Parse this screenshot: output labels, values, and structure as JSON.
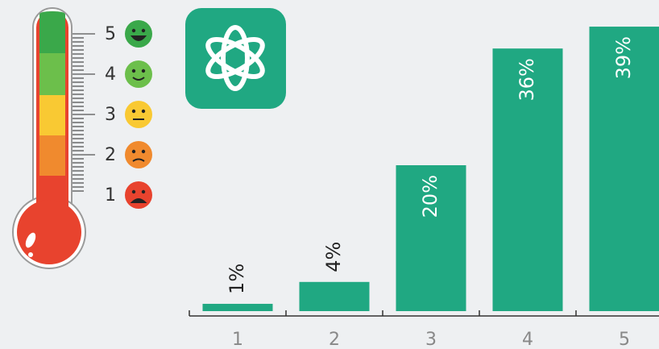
{
  "chart_data": {
    "type": "bar",
    "categories": [
      "1",
      "2",
      "3",
      "4",
      "5"
    ],
    "values": [
      1,
      4,
      20,
      36,
      39
    ],
    "value_labels": [
      "1%",
      "4%",
      "20%",
      "36%",
      "39%"
    ],
    "color": "#20a882"
  },
  "thermometer": {
    "labels": [
      "1",
      "2",
      "3",
      "4",
      "5"
    ]
  }
}
